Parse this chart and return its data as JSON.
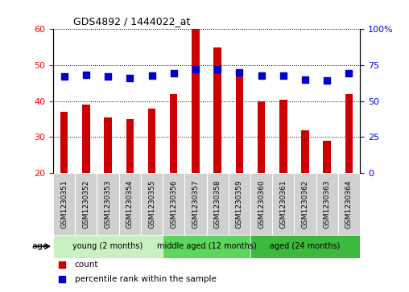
{
  "title": "GDS4892 / 1444022_at",
  "samples": [
    "GSM1230351",
    "GSM1230352",
    "GSM1230353",
    "GSM1230354",
    "GSM1230355",
    "GSM1230356",
    "GSM1230357",
    "GSM1230358",
    "GSM1230359",
    "GSM1230360",
    "GSM1230361",
    "GSM1230362",
    "GSM1230363",
    "GSM1230364"
  ],
  "counts": [
    37,
    39,
    35.5,
    35,
    38,
    42,
    60,
    55,
    47,
    40,
    40.5,
    32,
    29,
    42
  ],
  "percentile_ranks": [
    67,
    68.5,
    67,
    66,
    68,
    69.5,
    72,
    72,
    70,
    67.5,
    67.5,
    65,
    64.5,
    69.5
  ],
  "ylim_left": [
    20,
    60
  ],
  "ylim_right": [
    0,
    100
  ],
  "yticks_left": [
    20,
    30,
    40,
    50,
    60
  ],
  "yticks_right": [
    0,
    25,
    50,
    75,
    100
  ],
  "bar_color": "#cc0000",
  "marker_color": "#0000cc",
  "groups": [
    {
      "label": "young (2 months)",
      "start": 0,
      "end": 5
    },
    {
      "label": "middle aged (12 months)",
      "start": 5,
      "end": 9
    },
    {
      "label": "aged (24 months)",
      "start": 9,
      "end": 14
    }
  ],
  "group_colors": [
    "#c8f0c0",
    "#5cd65c",
    "#3dba3d"
  ],
  "age_label": "age",
  "legend_count": "count",
  "legend_percentile": "percentile rank within the sample",
  "bar_width": 0.35,
  "marker_size": 28
}
